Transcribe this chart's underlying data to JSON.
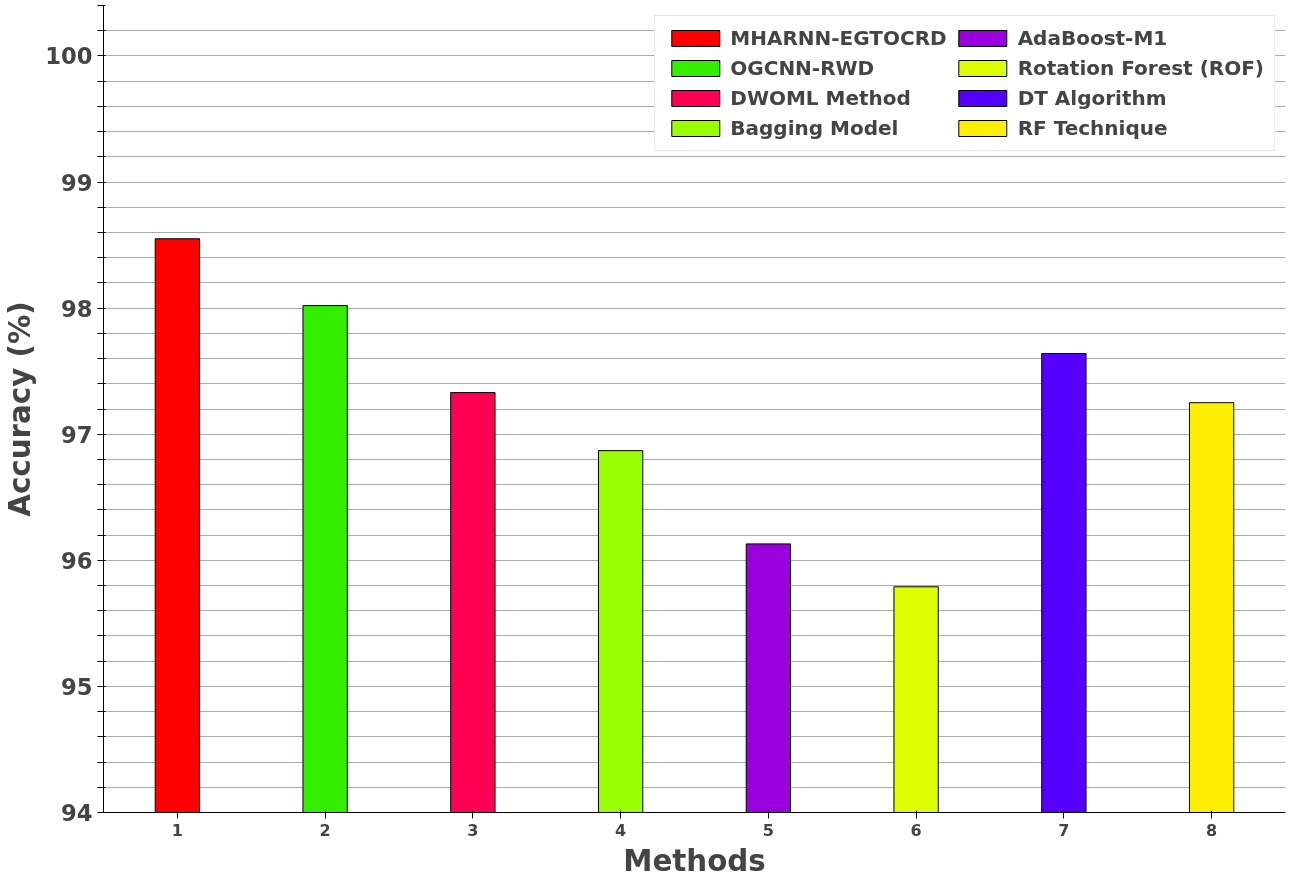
{
  "chart_data": {
    "type": "bar",
    "xlabel": "Methods",
    "ylabel": "Accuracy (%)",
    "categories": [
      "1",
      "2",
      "3",
      "4",
      "5",
      "6",
      "7",
      "8"
    ],
    "series": [
      {
        "name": "MHARNN-EGTOCRD",
        "color": "#ff0000",
        "values": [
          98.55,
          null,
          null,
          null,
          null,
          null,
          null,
          null
        ]
      },
      {
        "name": "OGCNN-RWD",
        "color": "#33ee00",
        "values": [
          null,
          98.02,
          null,
          null,
          null,
          null,
          null,
          null
        ]
      },
      {
        "name": "DWOML Method",
        "color": "#ff0055",
        "values": [
          null,
          null,
          97.33,
          null,
          null,
          null,
          null,
          null
        ]
      },
      {
        "name": "Bagging Model",
        "color": "#99ff00",
        "values": [
          null,
          null,
          null,
          96.87,
          null,
          null,
          null,
          null
        ]
      },
      {
        "name": "AdaBoost-M1",
        "color": "#9900dd",
        "values": [
          null,
          null,
          null,
          null,
          96.13,
          null,
          null,
          null
        ]
      },
      {
        "name": "Rotation Forest (ROF)",
        "color": "#ddff00",
        "values": [
          null,
          null,
          null,
          null,
          null,
          95.79,
          null,
          null
        ]
      },
      {
        "name": "DT Algorithm",
        "color": "#5500ff",
        "values": [
          null,
          null,
          null,
          null,
          null,
          null,
          97.64,
          null
        ]
      },
      {
        "name": "RF Technique",
        "color": "#ffee00",
        "values": [
          null,
          null,
          null,
          null,
          null,
          null,
          null,
          97.25
        ]
      }
    ],
    "ylim": [
      94,
      100.4
    ],
    "yticks": [
      94,
      {
        "value": 94.2,
        "label": null
      },
      {
        "value": 94.4,
        "label": null
      },
      {
        "value": 94.6,
        "label": null
      },
      {
        "value": 94.8,
        "label": null
      },
      95,
      {
        "value": 95.2,
        "label": null
      },
      {
        "value": 95.4,
        "label": null
      },
      {
        "value": 95.6,
        "label": null
      },
      {
        "value": 95.8,
        "label": null
      },
      96,
      {
        "value": 96.2,
        "label": null
      },
      {
        "value": 96.4,
        "label": null
      },
      {
        "value": 96.6,
        "label": null
      },
      {
        "value": 96.8,
        "label": null
      },
      97,
      {
        "value": 97.2,
        "label": null
      },
      {
        "value": 97.4,
        "label": null
      },
      {
        "value": 97.6,
        "label": null
      },
      {
        "value": 97.8,
        "label": null
      },
      98,
      {
        "value": 98.2,
        "label": null
      },
      {
        "value": 98.4,
        "label": null
      },
      {
        "value": 98.6,
        "label": null
      },
      {
        "value": 98.8,
        "label": null
      },
      99,
      {
        "value": 99.2,
        "label": null
      },
      {
        "value": 99.4,
        "label": null
      },
      {
        "value": 99.6,
        "label": null
      },
      {
        "value": 99.8,
        "label": null
      },
      100,
      {
        "value": 100.2,
        "label": null
      },
      {
        "value": 100.4,
        "label": null
      }
    ],
    "grid": "y",
    "legend": "top right"
  }
}
